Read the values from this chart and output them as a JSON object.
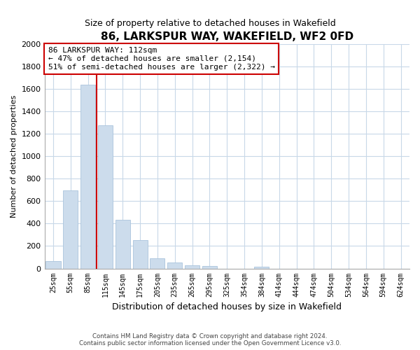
{
  "title": "86, LARKSPUR WAY, WAKEFIELD, WF2 0FD",
  "subtitle": "Size of property relative to detached houses in Wakefield",
  "xlabel": "Distribution of detached houses by size in Wakefield",
  "ylabel": "Number of detached properties",
  "bar_labels": [
    "25sqm",
    "55sqm",
    "85sqm",
    "115sqm",
    "145sqm",
    "175sqm",
    "205sqm",
    "235sqm",
    "265sqm",
    "295sqm",
    "325sqm",
    "354sqm",
    "384sqm",
    "414sqm",
    "444sqm",
    "474sqm",
    "504sqm",
    "534sqm",
    "564sqm",
    "594sqm",
    "624sqm"
  ],
  "bar_values": [
    65,
    695,
    1635,
    1275,
    435,
    252,
    90,
    52,
    30,
    25,
    0,
    0,
    15,
    0,
    0,
    0,
    0,
    0,
    0,
    0,
    0
  ],
  "bar_color": "#ccdcec",
  "bar_edge_color": "#aac4dc",
  "vline_color": "#cc0000",
  "annotation_line1": "86 LARKSPUR WAY: 112sqm",
  "annotation_line2": "← 47% of detached houses are smaller (2,154)",
  "annotation_line3": "51% of semi-detached houses are larger (2,322) →",
  "annotation_box_color": "#ffffff",
  "annotation_box_edge": "#cc0000",
  "ylim": [
    0,
    2000
  ],
  "yticks": [
    0,
    200,
    400,
    600,
    800,
    1000,
    1200,
    1400,
    1600,
    1800,
    2000
  ],
  "footer_line1": "Contains HM Land Registry data © Crown copyright and database right 2024.",
  "footer_line2": "Contains public sector information licensed under the Open Government Licence v3.0.",
  "bg_color": "#ffffff",
  "plot_bg_color": "#ffffff",
  "grid_color": "#c8d8e8"
}
